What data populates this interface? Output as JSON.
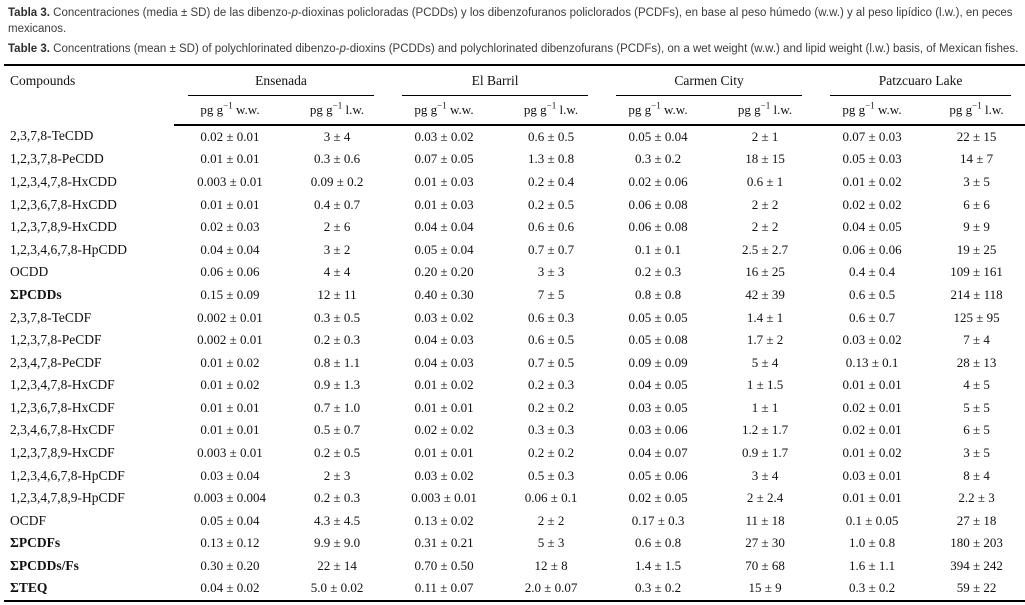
{
  "captions": {
    "es": {
      "label": "Tabla 3.",
      "pre": " Concentraciones (media ± SD) de las dibenzo-",
      "italic": "p",
      "post": "-dioxinas policloradas (PCDDs) y los dibenzofuranos policlorados (PCDFs), en base al peso húmedo (w.w.) y al peso lipídico (l.w.), en peces mexicanos."
    },
    "en": {
      "label": "Table 3.",
      "pre": " Concentrations (mean ± SD) of polychlorinated dibenzo-",
      "italic": "p",
      "post": "-dioxins (PCDDs) and polychlorinated dibenzofurans (PCDFs), on a wet weight (w.w.) and lipid weight (l.w.) basis, of Mexican fishes."
    }
  },
  "table": {
    "compounds_header": "Compounds",
    "locations": [
      "Ensenada",
      "El Barril",
      "Carmen City",
      "Patzcuaro Lake"
    ],
    "units": {
      "base": "pg g",
      "exp": "−1",
      "ww": " w.w.",
      "lw": " l.w."
    },
    "rows": [
      {
        "name": "2,3,7,8-TeCDD",
        "bold": false,
        "values": [
          "0.02 ± 0.01",
          "3 ± 4",
          "0.03 ± 0.02",
          "0.6 ± 0.5",
          "0.05 ± 0.04",
          "2 ± 1",
          "0.07 ± 0.03",
          "22 ± 15"
        ]
      },
      {
        "name": "1,2,3,7,8-PeCDD",
        "bold": false,
        "values": [
          "0.01 ± 0.01",
          "0.3 ± 0.6",
          "0.07 ± 0.05",
          "1.3 ± 0.8",
          "0.3 ± 0.2",
          "18 ± 15",
          "0.05 ± 0.03",
          "14 ± 7"
        ]
      },
      {
        "name": "1,2,3,4,7,8-HxCDD",
        "bold": false,
        "values": [
          "0.003 ± 0.01",
          "0.09 ± 0.2",
          "0.01 ± 0.03",
          "0.2 ± 0.4",
          "0.02 ± 0.06",
          "0.6 ± 1",
          "0.01 ± 0.02",
          "3 ± 5"
        ]
      },
      {
        "name": "1,2,3,6,7,8-HxCDD",
        "bold": false,
        "values": [
          "0.01 ± 0.01",
          "0.4 ± 0.7",
          "0.01 ± 0.03",
          "0.2 ± 0.5",
          "0.06 ± 0.08",
          "2 ± 2",
          "0.02 ± 0.02",
          "6 ± 6"
        ]
      },
      {
        "name": "1,2,3,7,8,9-HxCDD",
        "bold": false,
        "values": [
          "0.02 ± 0.03",
          "2 ± 6",
          "0.04 ± 0.04",
          "0.6 ± 0.6",
          "0.06 ± 0.08",
          "2 ± 2",
          "0.04 ± 0.05",
          "9 ± 9"
        ]
      },
      {
        "name": "1,2,3,4,6,7,8-HpCDD",
        "bold": false,
        "values": [
          "0.04 ± 0.04",
          "3 ± 2",
          "0.05 ± 0.04",
          "0.7 ± 0.7",
          "0.1 ± 0.1",
          "2.5 ± 2.7",
          "0.06 ± 0.06",
          "19 ± 25"
        ]
      },
      {
        "name": "OCDD",
        "bold": false,
        "values": [
          "0.06 ± 0.06",
          "4 ± 4",
          "0.20 ± 0.20",
          "3 ± 3",
          "0.2 ± 0.3",
          "16 ± 25",
          "0.4 ± 0.4",
          "109 ± 161"
        ]
      },
      {
        "name": "ΣPCDDs",
        "bold": true,
        "values": [
          "0.15 ± 0.09",
          "12 ± 11",
          "0.40 ± 0.30",
          "7 ± 5",
          "0.8 ± 0.8",
          "42 ± 39",
          "0.6 ± 0.5",
          "214 ± 118"
        ]
      },
      {
        "name": "2,3,7,8-TeCDF",
        "bold": false,
        "values": [
          "0.002 ± 0.01",
          "0.3 ± 0.5",
          "0.03 ± 0.02",
          "0.6 ± 0.3",
          "0.05 ± 0.05",
          "1.4 ± 1",
          "0.6 ± 0.7",
          "125 ± 95"
        ]
      },
      {
        "name": "1,2,3,7,8-PeCDF",
        "bold": false,
        "values": [
          "0.002 ± 0.01",
          "0.2 ± 0.3",
          "0.04 ± 0.03",
          "0.6 ± 0.5",
          "0.05 ± 0.08",
          "1.7 ± 2",
          "0.03 ± 0.02",
          "7 ± 4"
        ]
      },
      {
        "name": "2,3,4,7,8-PeCDF",
        "bold": false,
        "values": [
          "0.01 ± 0.02",
          "0.8 ± 1.1",
          "0.04 ± 0.03",
          "0.7 ± 0.5",
          "0.09 ± 0.09",
          "5 ± 4",
          "0.13 ± 0.1",
          "28 ± 13"
        ]
      },
      {
        "name": "1,2,3,4,7,8-HxCDF",
        "bold": false,
        "values": [
          "0.01 ± 0.02",
          "0.9 ± 1.3",
          "0.01 ± 0.02",
          "0.2 ± 0.3",
          "0.04 ± 0.05",
          "1 ± 1.5",
          "0.01 ± 0.01",
          "4 ± 5"
        ]
      },
      {
        "name": "1,2,3,6,7,8-HxCDF",
        "bold": false,
        "values": [
          "0.01 ± 0.01",
          "0.7 ± 1.0",
          "0.01 ± 0.01",
          "0.2 ± 0.2",
          "0.03 ± 0.05",
          "1 ± 1",
          "0.02 ± 0.01",
          "5 ± 5"
        ]
      },
      {
        "name": "2,3,4,6,7,8-HxCDF",
        "bold": false,
        "values": [
          "0.01 ± 0.01",
          "0.5 ± 0.7",
          "0.02 ± 0.02",
          "0.3 ± 0.3",
          "0.03 ± 0.06",
          "1.2 ± 1.7",
          "0.02 ± 0.01",
          "6 ± 5"
        ]
      },
      {
        "name": "1,2,3,7,8,9-HxCDF",
        "bold": false,
        "values": [
          "0.003 ± 0.01",
          "0.2 ± 0.5",
          "0.01 ± 0.01",
          "0.2 ± 0.2",
          "0.04 ± 0.07",
          "0.9 ± 1.7",
          "0.01 ± 0.02",
          "3 ± 5"
        ]
      },
      {
        "name": "1,2,3,4,6,7,8-HpCDF",
        "bold": false,
        "values": [
          "0.03 ± 0.04",
          "2 ± 3",
          "0.03 ± 0.02",
          "0.5 ± 0.3",
          "0.05 ± 0.06",
          "3 ± 4",
          "0.03 ± 0.01",
          "8 ± 4"
        ]
      },
      {
        "name": "1,2,3,4,7,8,9-HpCDF",
        "bold": false,
        "values": [
          "0.003 ± 0.004",
          "0.2 ± 0.3",
          "0.003 ± 0.01",
          "0.06 ± 0.1",
          "0.02 ± 0.05",
          "2 ± 2.4",
          "0.01 ± 0.01",
          "2.2 ± 3"
        ]
      },
      {
        "name": "OCDF",
        "bold": false,
        "values": [
          "0.05 ± 0.04",
          "4.3 ± 4.5",
          "0.13 ± 0.02",
          "2 ± 2",
          "0.17 ± 0.3",
          "11 ± 18",
          "0.1 ± 0.05",
          "27 ± 18"
        ]
      },
      {
        "name": "ΣPCDFs",
        "bold": true,
        "values": [
          "0.13 ± 0.12",
          "9.9 ± 9.0",
          "0.31 ± 0.21",
          "5 ± 3",
          "0.6 ± 0.8",
          "27 ± 30",
          "1.0 ± 0.8",
          "180 ± 203"
        ]
      },
      {
        "name": "ΣPCDDs/Fs",
        "bold": true,
        "values": [
          "0.30 ± 0.20",
          "22 ± 14",
          "0.70 ± 0.50",
          "12 ± 8",
          "1.4 ± 1.5",
          "70 ± 68",
          "1.6 ± 1.1",
          "394 ± 242"
        ]
      },
      {
        "name": "ΣTEQ",
        "bold": true,
        "values": [
          "0.04 ± 0.02",
          "5.0 ± 0.02",
          "0.11 ± 0.07",
          "2.0 ± 0.07",
          "0.3 ± 0.2",
          "15 ± 9",
          "0.3 ± 0.2",
          "59 ± 22"
        ]
      }
    ]
  }
}
